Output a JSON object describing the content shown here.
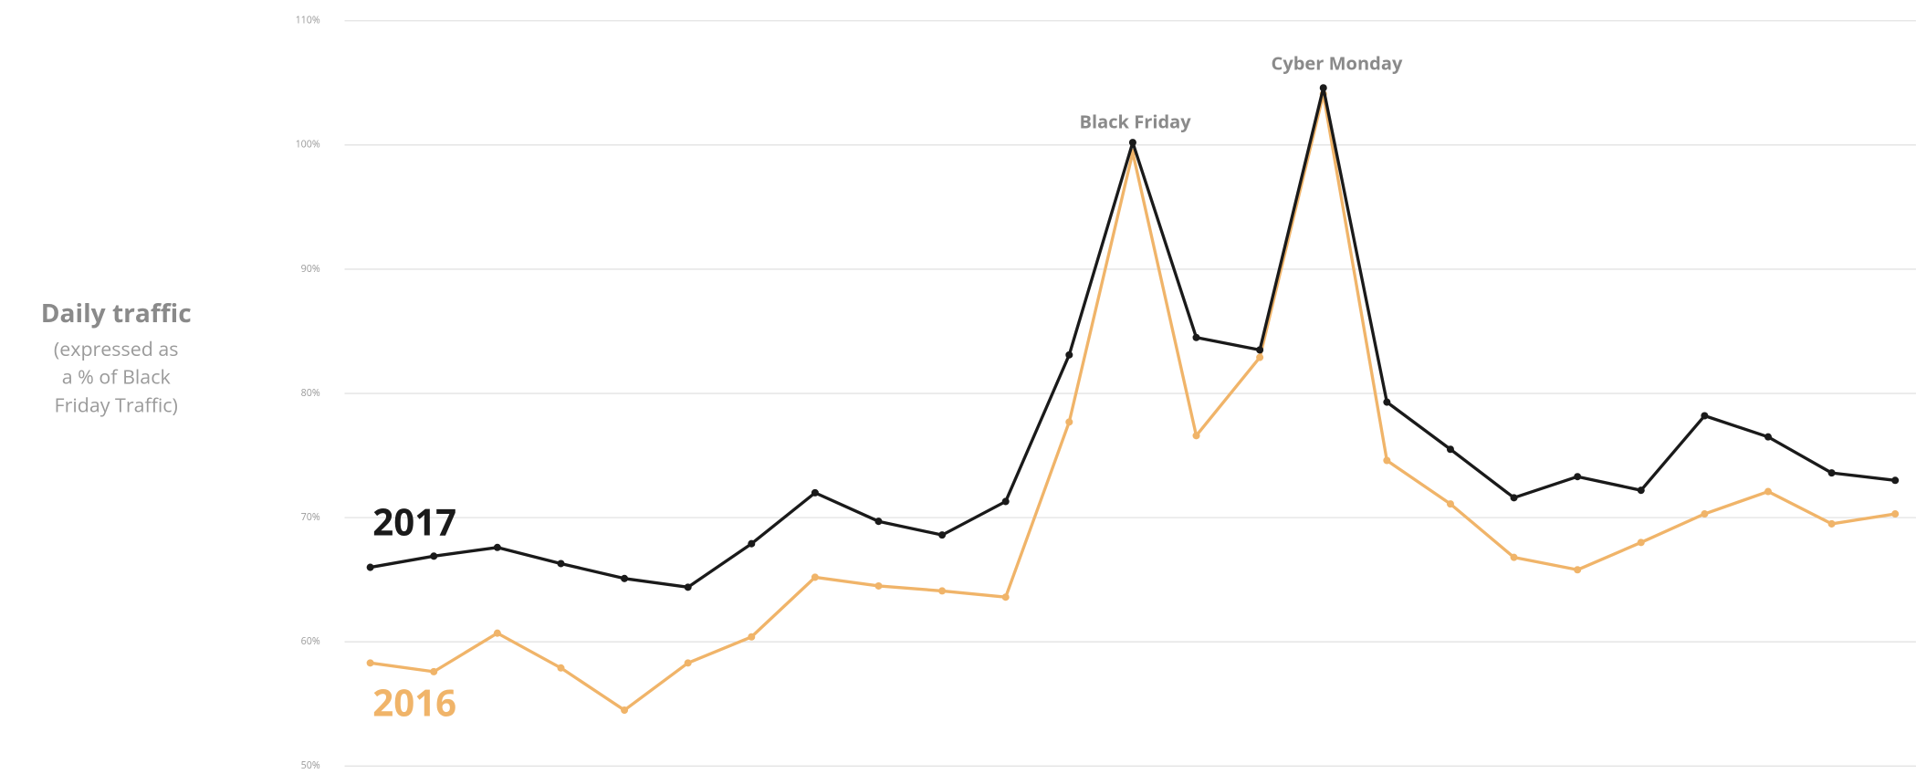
{
  "chart_data": {
    "type": "line",
    "y_label": "Daily traffic",
    "y_label_note": [
      "(expressed as",
      "a % of Black",
      "Friday Traffic)"
    ],
    "annotations": [
      "Black Friday",
      "Cyber Monday"
    ],
    "categories": [
      null,
      null,
      null,
      null,
      null,
      null,
      null,
      null,
      null,
      null,
      null,
      null,
      null,
      null,
      null,
      null,
      null,
      null,
      null,
      null,
      null,
      null,
      null,
      null,
      null
    ],
    "series": [
      {
        "name": "2017",
        "color": "#1a1a1a",
        "values": [
          66.0,
          66.9,
          67.6,
          66.3,
          65.1,
          64.4,
          67.9,
          72.0,
          69.7,
          68.6,
          71.3,
          83.1,
          100.2,
          84.5,
          83.5,
          104.6,
          79.3,
          75.5,
          71.6,
          73.3,
          72.2,
          78.2,
          76.5,
          73.6,
          73.0
        ]
      },
      {
        "name": "2016",
        "color": "#f0b469",
        "values": [
          58.3,
          57.6,
          60.7,
          57.9,
          54.5,
          58.3,
          60.4,
          65.2,
          64.5,
          64.1,
          63.6,
          77.7,
          99.4,
          76.6,
          82.9,
          104.1,
          74.6,
          71.1,
          66.8,
          65.8,
          68.0,
          70.3,
          72.1,
          69.5,
          70.3
        ]
      }
    ],
    "ylim": [
      50,
      110
    ],
    "yticks": [
      {
        "value": 50,
        "label": "50%"
      },
      {
        "value": 60,
        "label": "60%"
      },
      {
        "value": 70,
        "label": "70%"
      },
      {
        "value": 80,
        "label": "80%"
      },
      {
        "value": 90,
        "label": "90%"
      },
      {
        "value": 100,
        "label": "100%"
      },
      {
        "value": 110,
        "label": "110%"
      }
    ],
    "grid": true
  }
}
